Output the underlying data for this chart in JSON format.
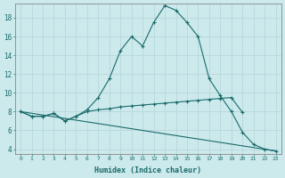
{
  "xlabel": "Humidex (Indice chaleur)",
  "background_color": "#cce9ec",
  "grid_color": "#b8d8dc",
  "line_color": "#1a6b6b",
  "xlim": [
    -0.5,
    23.5
  ],
  "ylim": [
    3.5,
    19.5
  ],
  "xticks": [
    0,
    1,
    2,
    3,
    4,
    5,
    6,
    7,
    8,
    9,
    10,
    11,
    12,
    13,
    14,
    15,
    16,
    17,
    18,
    19,
    20,
    21,
    22,
    23
  ],
  "yticks": [
    4,
    6,
    8,
    10,
    12,
    14,
    16,
    18
  ],
  "line1_x": [
    0,
    1,
    2,
    3,
    4,
    5,
    6,
    7,
    8,
    9,
    10,
    11,
    12,
    13,
    14,
    15,
    16,
    17,
    18,
    19,
    20,
    21,
    22,
    23
  ],
  "line1_y": [
    8.0,
    7.5,
    7.5,
    7.8,
    7.0,
    7.5,
    8.2,
    9.5,
    11.5,
    14.5,
    16.0,
    15.0,
    17.5,
    19.3,
    18.8,
    17.5,
    16.0,
    11.5,
    9.7,
    8.0,
    5.8,
    4.5,
    4.0,
    3.8
  ],
  "line2_x": [
    0,
    1,
    2,
    3,
    4,
    5,
    6,
    7,
    8,
    9,
    10,
    11,
    12,
    13,
    14,
    15,
    16,
    17,
    18,
    19,
    20
  ],
  "line2_y": [
    8.0,
    7.5,
    7.5,
    7.8,
    7.0,
    7.5,
    8.0,
    8.2,
    8.3,
    8.5,
    8.6,
    8.7,
    8.8,
    8.9,
    9.0,
    9.1,
    9.2,
    9.3,
    9.4,
    9.5,
    7.9
  ],
  "line3_x": [
    0,
    23
  ],
  "line3_y": [
    8.0,
    3.8
  ]
}
